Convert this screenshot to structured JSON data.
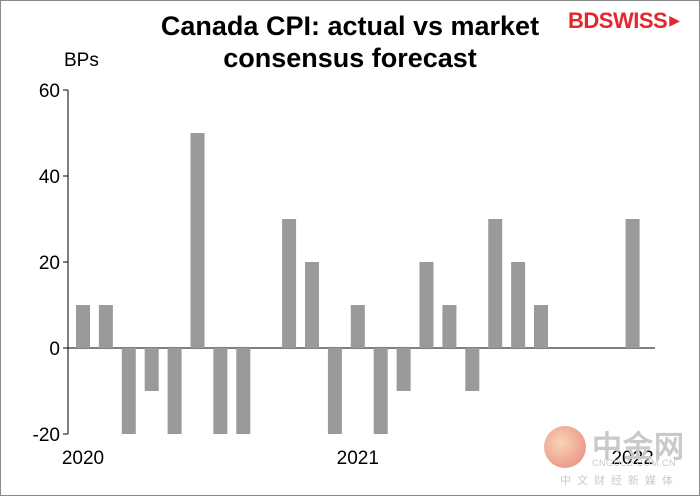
{
  "chart_data": {
    "type": "bar",
    "title": "Canada CPI: actual vs market consensus forecast",
    "ylabel": "BPs",
    "ylim": [
      -20,
      60
    ],
    "yticks": [
      60,
      40,
      20,
      0,
      -20
    ],
    "xtick_labels": [
      {
        "label": "2020",
        "index": 0
      },
      {
        "label": "2021",
        "index": 12
      },
      {
        "label": "2022",
        "index": 24
      }
    ],
    "values": [
      10,
      10,
      -20,
      -10,
      -20,
      50,
      -20,
      -20,
      null,
      30,
      20,
      -20,
      10,
      -20,
      -10,
      20,
      10,
      -10,
      30,
      20,
      10,
      null,
      null,
      null,
      30
    ],
    "bar_color": "#9a9a9a",
    "grid": false
  },
  "brand": {
    "name": "BDSWISS",
    "arrow": "▶",
    "color": "#e3262f"
  },
  "watermark": {
    "cn": "中金网",
    "url": "CNGOLD.COM.CN",
    "sub": "中文财经新媒体"
  }
}
